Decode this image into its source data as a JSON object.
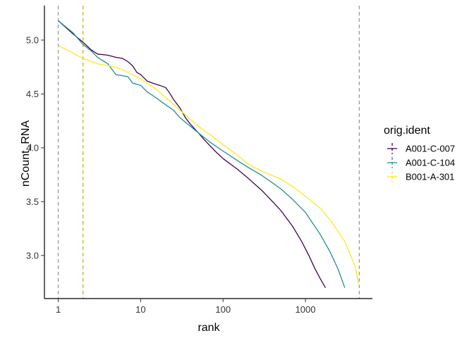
{
  "chart_data": {
    "type": "line",
    "xlabel": "rank",
    "ylabel": "nCount_RNA",
    "x_scale": "log10",
    "xlim": [
      0.68,
      6500
    ],
    "ylim": [
      2.6,
      5.32
    ],
    "x_ticks": [
      1,
      10,
      100,
      1000
    ],
    "x_tick_labels": [
      "1",
      "10",
      "100",
      "1000"
    ],
    "y_ticks": [
      3.0,
      3.5,
      4.0,
      4.5,
      5.0
    ],
    "y_tick_labels": [
      "3.0",
      "3.5",
      "4.0",
      "4.5",
      "5.0"
    ],
    "grid": false,
    "legend": {
      "title": "orig.ident",
      "position": "right"
    },
    "series": [
      {
        "name": "A001-C-007",
        "color": "#440154",
        "points": [
          [
            1,
            5.18
          ],
          [
            1.5,
            5.06
          ],
          [
            2,
            4.98
          ],
          [
            2.5,
            4.91
          ],
          [
            3,
            4.87
          ],
          [
            4,
            4.86
          ],
          [
            5,
            4.84
          ],
          [
            6,
            4.83
          ],
          [
            7,
            4.8
          ],
          [
            8,
            4.76
          ],
          [
            9,
            4.7
          ],
          [
            10,
            4.68
          ],
          [
            12,
            4.62
          ],
          [
            14,
            4.6
          ],
          [
            17,
            4.58
          ],
          [
            20,
            4.56
          ],
          [
            22,
            4.52
          ],
          [
            25,
            4.45
          ],
          [
            30,
            4.37
          ],
          [
            35,
            4.28
          ],
          [
            40,
            4.22
          ],
          [
            50,
            4.14
          ],
          [
            60,
            4.07
          ],
          [
            80,
            3.97
          ],
          [
            100,
            3.9
          ],
          [
            150,
            3.8
          ],
          [
            200,
            3.72
          ],
          [
            300,
            3.6
          ],
          [
            400,
            3.5
          ],
          [
            500,
            3.42
          ],
          [
            700,
            3.27
          ],
          [
            900,
            3.13
          ],
          [
            1100,
            3.0
          ],
          [
            1300,
            2.88
          ],
          [
            1500,
            2.79
          ],
          [
            1750,
            2.7
          ]
        ],
        "vline": 1
      },
      {
        "name": "A001-C-104",
        "color": "#21908C",
        "points": [
          [
            1,
            5.18
          ],
          [
            1.5,
            5.07
          ],
          [
            2,
            4.96
          ],
          [
            2.5,
            4.9
          ],
          [
            3,
            4.84
          ],
          [
            4,
            4.78
          ],
          [
            5,
            4.68
          ],
          [
            7,
            4.66
          ],
          [
            8,
            4.6
          ],
          [
            10,
            4.58
          ],
          [
            12,
            4.52
          ],
          [
            15,
            4.47
          ],
          [
            20,
            4.4
          ],
          [
            25,
            4.35
          ],
          [
            30,
            4.28
          ],
          [
            40,
            4.2
          ],
          [
            50,
            4.14
          ],
          [
            70,
            4.05
          ],
          [
            100,
            3.97
          ],
          [
            150,
            3.88
          ],
          [
            200,
            3.82
          ],
          [
            300,
            3.74
          ],
          [
            500,
            3.62
          ],
          [
            700,
            3.52
          ],
          [
            1000,
            3.4
          ],
          [
            1500,
            3.2
          ],
          [
            2000,
            3.03
          ],
          [
            2500,
            2.87
          ],
          [
            3000,
            2.7
          ]
        ],
        "vline": 1
      },
      {
        "name": "B001-A-301",
        "color": "#FDE725",
        "points": [
          [
            1,
            4.95
          ],
          [
            1.5,
            4.88
          ],
          [
            2,
            4.83
          ],
          [
            3,
            4.78
          ],
          [
            5,
            4.75
          ],
          [
            7,
            4.7
          ],
          [
            10,
            4.64
          ],
          [
            15,
            4.55
          ],
          [
            20,
            4.47
          ],
          [
            30,
            4.35
          ],
          [
            50,
            4.2
          ],
          [
            70,
            4.12
          ],
          [
            100,
            4.03
          ],
          [
            150,
            3.93
          ],
          [
            200,
            3.85
          ],
          [
            300,
            3.78
          ],
          [
            500,
            3.71
          ],
          [
            700,
            3.64
          ],
          [
            1000,
            3.55
          ],
          [
            1500,
            3.44
          ],
          [
            2000,
            3.33
          ],
          [
            3000,
            3.13
          ],
          [
            4000,
            2.9
          ],
          [
            4400,
            2.74
          ]
        ],
        "vline": 2
      }
    ],
    "reference_lines": [
      {
        "x": 1,
        "color": "#999999",
        "style": "dashed"
      },
      {
        "x": 4500,
        "color": "#999999",
        "style": "dashed"
      },
      {
        "x": 2,
        "color": "#C8B400",
        "style": "dashed"
      }
    ]
  }
}
